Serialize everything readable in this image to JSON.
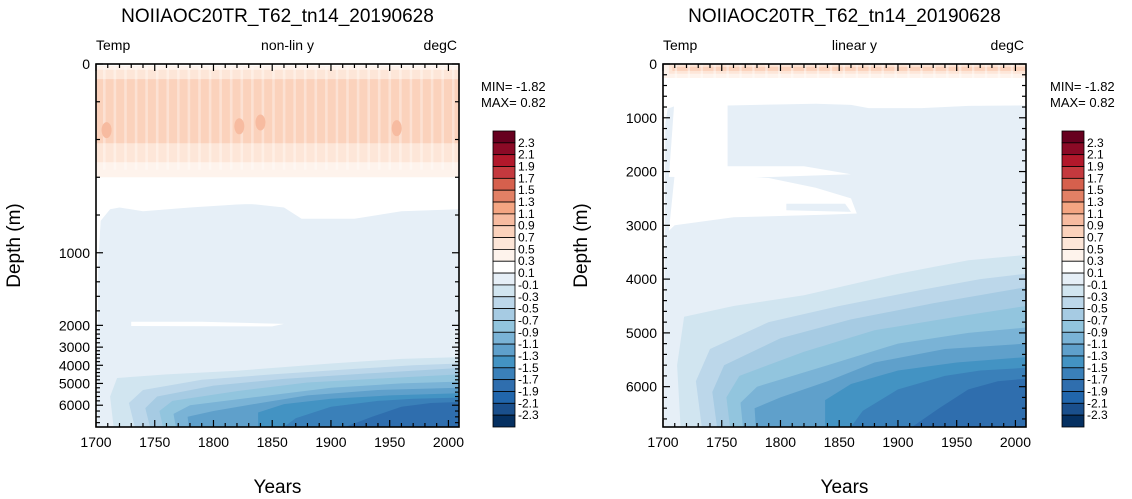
{
  "chart_data": [
    {
      "type": "heatmap",
      "title": "NOIIAOC20TR_T62_tn14_20190628",
      "left_label": "Temp",
      "center_label": "non-lin y",
      "right_label": "degC",
      "xlabel": "Years",
      "ylabel": "Depth (m)",
      "xlim": [
        1700,
        2009
      ],
      "ylim": [
        0,
        6750
      ],
      "y_scale": "non-linear",
      "x_ticks": [
        "1700",
        "1750",
        "1800",
        "1850",
        "1900",
        "1950",
        "2000"
      ],
      "y_ticks": [
        "0",
        "1000",
        "2000",
        "3000",
        "4000",
        "5000",
        "6000"
      ],
      "stats": {
        "min": "MIN= -1.82",
        "max": "MAX=  0.82"
      },
      "contour_bands": [
        {
          "value_range": [
            0.3,
            0.5
          ],
          "depth_range": [
            10,
            620
          ],
          "description": "warm anomaly near surface, peak ~0.7"
        },
        {
          "value_range": [
            -0.3,
            -0.1
          ],
          "depth_range": [
            750,
            6750
          ],
          "description": "weak cooling at depth"
        },
        {
          "value_range": [
            -1.9,
            -1.7
          ],
          "depth_range": [
            5200,
            6750
          ],
          "description": "strongest cooling at bottom after 1950"
        }
      ]
    },
    {
      "type": "heatmap",
      "title": "NOIIAOC20TR_T62_tn14_20190628",
      "left_label": "Temp",
      "center_label": "linear y",
      "right_label": "degC",
      "xlabel": "Years",
      "ylabel": "Depth (m)",
      "xlim": [
        1700,
        2009
      ],
      "ylim": [
        0,
        6750
      ],
      "y_scale": "linear",
      "x_ticks": [
        "1700",
        "1750",
        "1800",
        "1850",
        "1900",
        "1950",
        "2000"
      ],
      "y_ticks": [
        "0",
        "1000",
        "2000",
        "3000",
        "4000",
        "5000",
        "6000"
      ],
      "stats": {
        "min": "MIN= -1.82",
        "max": "MAX=  0.82"
      },
      "contour_bands": [
        {
          "value_range": [
            0.1,
            0.5
          ],
          "depth_range": [
            10,
            620
          ],
          "description": "warm anomaly near surface"
        },
        {
          "value_range": [
            -0.3,
            -0.1
          ],
          "depth_range": [
            750,
            6750
          ],
          "description": "weak cooling at depth"
        },
        {
          "value_range": [
            -1.9,
            -1.7
          ],
          "depth_range": [
            5200,
            6750
          ],
          "description": "strongest cooling at bottom after 1950"
        }
      ]
    }
  ],
  "colorbar": {
    "labels": [
      "2.3",
      "2.1",
      "1.9",
      "1.7",
      "1.5",
      "1.3",
      "1.1",
      "0.9",
      "0.7",
      "0.5",
      "0.3",
      "0.1",
      "-0.1",
      "-0.3",
      "-0.5",
      "-0.7",
      "-0.9",
      "-1.1",
      "-1.3",
      "-1.5",
      "-1.7",
      "-1.9",
      "-2.1",
      "-2.3"
    ],
    "colors": [
      "#67001f",
      "#8b0a26",
      "#b2182b",
      "#c4393e",
      "#d6604d",
      "#e28065",
      "#f4a582",
      "#f7bba0",
      "#fbd2bc",
      "#fde6d8",
      "#fef3ec",
      "#ffffff",
      "#e6eff7",
      "#d1e5f0",
      "#bcd7ea",
      "#a6cbe3",
      "#92c5de",
      "#7ab3d6",
      "#5fa0cb",
      "#4393c3",
      "#3a80b9",
      "#2f6eae",
      "#2166ac",
      "#1a4f8c",
      "#053061"
    ]
  },
  "colors": {
    "warm_1": "#fef3ec",
    "warm_2": "#fde6d8",
    "warm_3": "#fbd2bc",
    "warm_4": "#f7bba0",
    "cool_1": "#e6eff7",
    "cool_2": "#d1e5f0",
    "cool_3": "#bcd7ea",
    "cool_4": "#a6cbe3",
    "cool_5": "#92c5de",
    "cool_6": "#7ab3d6",
    "cool_7": "#5fa0cb",
    "cool_8": "#4393c3",
    "cool_9": "#3a80b9",
    "cool_10": "#2f6eae",
    "cool_11": "#2166ac"
  }
}
